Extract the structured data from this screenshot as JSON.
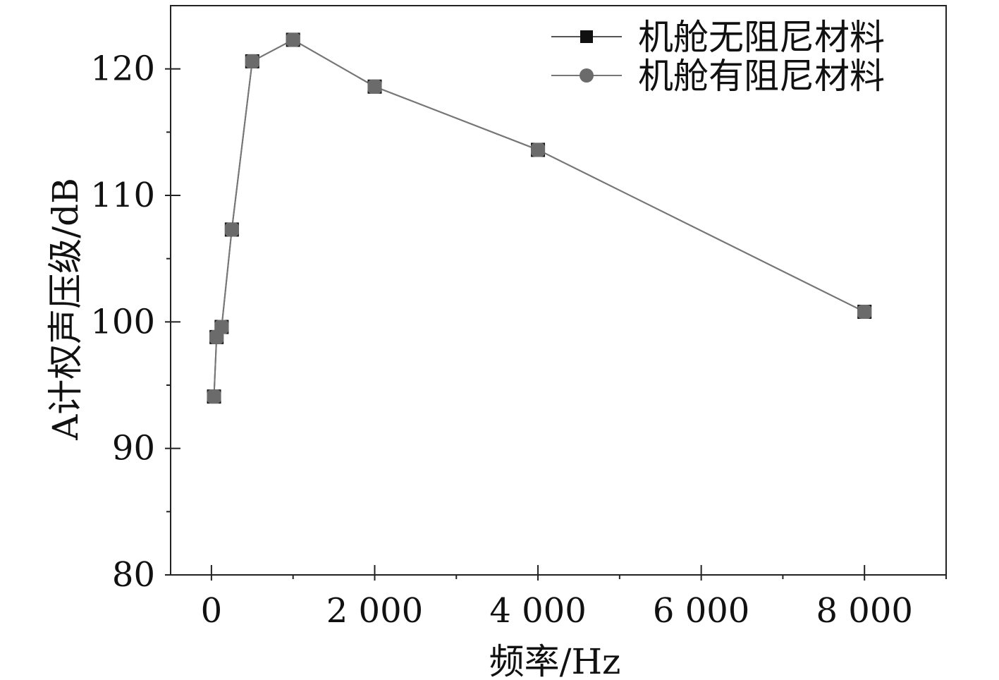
{
  "chart_data": {
    "type": "line",
    "xlabel": "频率/Hz",
    "ylabel": "A计权声压级/dB",
    "xlim": [
      -500,
      9000
    ],
    "ylim": [
      80,
      125
    ],
    "x_ticks": [
      0,
      2000,
      4000,
      6000,
      8000
    ],
    "x_tick_labels": [
      "0",
      "2 000",
      "4 000",
      "6 000",
      "8 000"
    ],
    "x_minor_ticks": [
      1000,
      3000,
      5000,
      7000,
      9000
    ],
    "y_ticks": [
      80,
      90,
      100,
      110,
      120
    ],
    "y_tick_labels": [
      "80",
      "90",
      "100",
      "110",
      "120"
    ],
    "y_minor_ticks": [
      85,
      95,
      105,
      115
    ],
    "grid": false,
    "legend_position": "top-right",
    "series": [
      {
        "name": "机舱无阻尼材料",
        "marker": "square",
        "color": "#111111",
        "x": [
          31.5,
          63,
          125,
          250,
          500,
          1000,
          2000,
          4000,
          8000
        ],
        "y": [
          94.1,
          98.8,
          99.6,
          107.3,
          120.6,
          122.3,
          118.6,
          113.6,
          100.8
        ]
      },
      {
        "name": "机舱有阻尼材料",
        "marker": "circle",
        "color": "#666666",
        "x": [
          31.5,
          63,
          125,
          250,
          500,
          1000,
          2000,
          4000,
          8000
        ],
        "y": [
          94.1,
          98.8,
          99.6,
          107.3,
          120.6,
          122.3,
          118.6,
          113.6,
          100.8
        ]
      }
    ]
  }
}
